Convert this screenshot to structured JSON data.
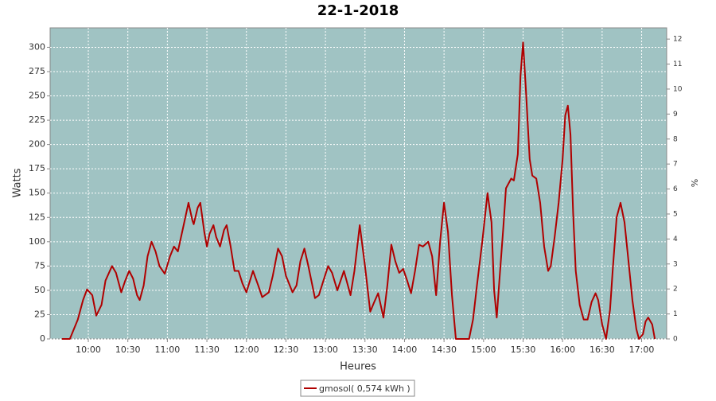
{
  "chart_data": {
    "type": "line",
    "title": "22-1-2018",
    "x_label": "Heures",
    "y_label": "Watts",
    "y2_label": "%",
    "x": [
      "09:40",
      "09:46",
      "09:52",
      "09:56",
      "09:59",
      "10:03",
      "10:06",
      "10:10",
      "10:13",
      "10:18",
      "10:21",
      "10:25",
      "10:28",
      "10:31",
      "10:34",
      "10:37",
      "10:39",
      "10:42",
      "10:45",
      "10:48",
      "10:51",
      "10:54",
      "10:58",
      "11:02",
      "11:05",
      "11:08",
      "11:12",
      "11:16",
      "11:19",
      "11:20",
      "11:23",
      "11:25",
      "11:28",
      "11:30",
      "11:32",
      "11:35",
      "11:37",
      "11:40",
      "11:43",
      "11:45",
      "11:48",
      "11:51",
      "11:54",
      "11:57",
      "12:00",
      "12:05",
      "12:09",
      "12:12",
      "12:17",
      "12:20",
      "12:24",
      "12:27",
      "12:30",
      "12:35",
      "12:38",
      "12:41",
      "12:44",
      "12:47",
      "12:52",
      "12:55",
      "12:58",
      "13:02",
      "13:05",
      "13:09",
      "13:14",
      "13:19",
      "13:22",
      "13:26",
      "13:30",
      "13:34",
      "13:37",
      "13:40",
      "13:44",
      "13:47",
      "13:50",
      "13:53",
      "13:56",
      "13:59",
      "14:02",
      "14:05",
      "14:08",
      "14:11",
      "14:14",
      "14:18",
      "14:21",
      "14:24",
      "14:27",
      "14:30",
      "14:33",
      "14:36",
      "14:39",
      "14:49",
      "14:52",
      "14:55",
      "14:59",
      "15:03",
      "15:06",
      "15:08",
      "15:10",
      "15:12",
      "15:15",
      "15:17",
      "15:21",
      "15:23",
      "15:26",
      "15:28",
      "15:30",
      "15:32",
      "15:35",
      "15:37",
      "15:40",
      "15:43",
      "15:46",
      "15:49",
      "15:51",
      "15:54",
      "15:57",
      "16:00",
      "16:02",
      "16:04",
      "16:06",
      "16:08",
      "16:10",
      "16:13",
      "16:16",
      "16:19",
      "16:22",
      "16:25",
      "16:27",
      "16:30",
      "16:33",
      "16:36",
      "16:38",
      "16:41",
      "16:44",
      "16:47",
      "16:50",
      "16:53",
      "16:56",
      "16:58",
      "17:01",
      "17:03",
      "17:05",
      "17:08",
      "17:10"
    ],
    "series": [
      {
        "name": "gmosol( 0,574 kWh )",
        "color": "#b00000",
        "values": [
          0,
          0,
          20,
          40,
          51,
          45,
          24,
          35,
          60,
          75,
          68,
          48,
          60,
          70,
          62,
          45,
          40,
          55,
          85,
          100,
          90,
          75,
          67,
          85,
          95,
          90,
          115,
          140,
          122,
          118,
          135,
          140,
          110,
          95,
          108,
          117,
          105,
          95,
          112,
          117,
          95,
          70,
          70,
          57,
          48,
          70,
          55,
          43,
          48,
          65,
          93,
          85,
          65,
          48,
          55,
          80,
          93,
          75,
          42,
          45,
          58,
          75,
          68,
          50,
          70,
          45,
          70,
          117,
          75,
          28,
          38,
          47,
          22,
          55,
          97,
          80,
          68,
          72,
          60,
          47,
          70,
          97,
          95,
          100,
          85,
          45,
          100,
          140,
          110,
          45,
          0,
          0,
          20,
          55,
          100,
          150,
          120,
          50,
          22,
          60,
          115,
          155,
          165,
          163,
          190,
          270,
          305,
          260,
          185,
          168,
          165,
          140,
          95,
          70,
          75,
          105,
          140,
          185,
          230,
          240,
          210,
          130,
          70,
          35,
          20,
          20,
          38,
          47,
          40,
          15,
          0,
          30,
          70,
          125,
          140,
          120,
          80,
          40,
          10,
          0,
          5,
          18,
          22,
          15,
          0
        ]
      }
    ],
    "xlim": [
      "09:31",
      "17:19"
    ],
    "xticks": [
      "10:00",
      "10:30",
      "11:00",
      "11:30",
      "12:00",
      "12:30",
      "13:00",
      "13:30",
      "14:00",
      "14:30",
      "15:00",
      "15:30",
      "16:00",
      "16:30",
      "17:00"
    ],
    "ylim": [
      0,
      320
    ],
    "yticks": [
      0,
      25,
      50,
      75,
      100,
      125,
      150,
      175,
      200,
      225,
      250,
      275,
      300
    ],
    "y2lim": [
      0,
      12.45
    ],
    "y2ticks": [
      0,
      1,
      2,
      3,
      4,
      5,
      6,
      7,
      8,
      9,
      10,
      11,
      12
    ],
    "grid": true,
    "background": "#a0c3c3",
    "legend": "bottom"
  }
}
